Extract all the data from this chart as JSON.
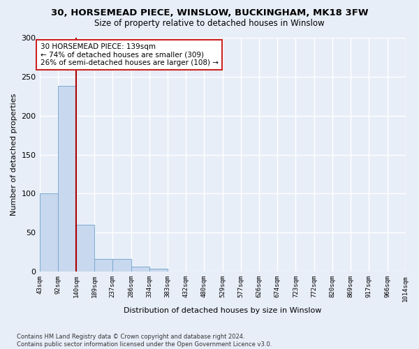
{
  "title": "30, HORSEMEAD PIECE, WINSLOW, BUCKINGHAM, MK18 3FW",
  "subtitle": "Size of property relative to detached houses in Winslow",
  "xlabel": "Distribution of detached houses by size in Winslow",
  "ylabel": "Number of detached properties",
  "bin_edges": [
    43,
    92,
    140,
    189,
    237,
    286,
    334,
    383,
    432,
    480,
    529,
    577,
    626,
    674,
    723,
    772,
    820,
    869,
    917,
    966,
    1014
  ],
  "bin_labels": [
    "43sqm",
    "92sqm",
    "140sqm",
    "189sqm",
    "237sqm",
    "286sqm",
    "334sqm",
    "383sqm",
    "432sqm",
    "480sqm",
    "529sqm",
    "577sqm",
    "626sqm",
    "674sqm",
    "723sqm",
    "772sqm",
    "820sqm",
    "869sqm",
    "917sqm",
    "966sqm",
    "1014sqm"
  ],
  "counts": [
    100,
    238,
    60,
    16,
    16,
    6,
    4,
    0,
    0,
    0,
    0,
    0,
    0,
    0,
    0,
    0,
    0,
    0,
    0,
    0
  ],
  "bar_color": "#c8d8ee",
  "bar_edge_color": "#7aaad0",
  "vline_x": 140,
  "vline_color": "#aa0000",
  "annotation_text": "30 HORSEMEAD PIECE: 139sqm\n← 74% of detached houses are smaller (309)\n26% of semi-detached houses are larger (108) →",
  "annotation_box_color": "#ffffff",
  "annotation_box_edge": "#cc2222",
  "ylim": [
    0,
    300
  ],
  "yticks": [
    0,
    50,
    100,
    150,
    200,
    250,
    300
  ],
  "footer": "Contains HM Land Registry data © Crown copyright and database right 2024.\nContains public sector information licensed under the Open Government Licence v3.0.",
  "bg_color": "#e8eef8"
}
